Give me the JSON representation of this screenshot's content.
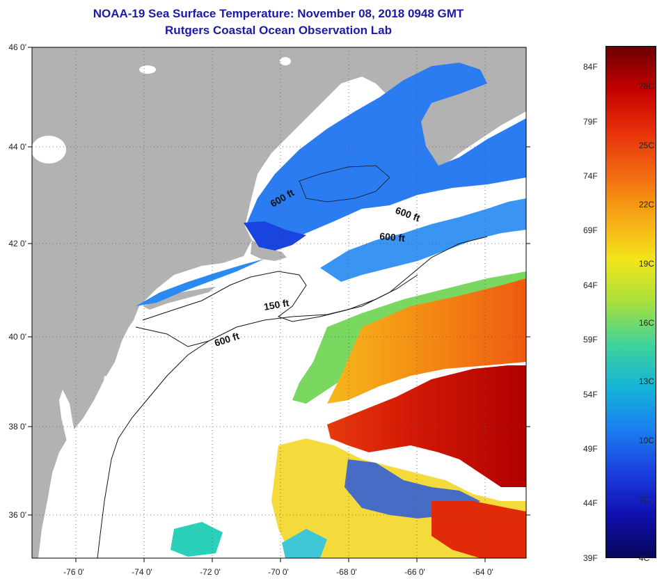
{
  "title": {
    "line1": "NOAA-19 Sea Surface Temperature:  November 08, 2018 0948 GMT",
    "line2": "Rutgers Coastal Ocean Observation Lab"
  },
  "axes": {
    "lat_labels": [
      "46 0'",
      "44 0'",
      "42 0'",
      "40 0'",
      "38 0'",
      "36 0'"
    ],
    "lon_labels": [
      "-76 0'",
      "-74 0'",
      "-72 0'",
      "-70 0'",
      "-68 0'",
      "-66 0'",
      "-64 0'"
    ]
  },
  "contours": {
    "labels": [
      "600 ft",
      "600 ft",
      "600 ft",
      "150 ft",
      "600 ft"
    ]
  },
  "colorbar": {
    "f_labels": [
      "84F",
      "79F",
      "74F",
      "69F",
      "64F",
      "59F",
      "54F",
      "49F",
      "44F",
      "39F"
    ],
    "c_labels": [
      "28C",
      "25C",
      "22C",
      "19C",
      "16C",
      "13C",
      "10C",
      "7C",
      "4C"
    ],
    "colors": [
      "#6b0000",
      "#c40000",
      "#e8300a",
      "#f26a10",
      "#f7a815",
      "#f3e51a",
      "#a8e03c",
      "#3fd39a",
      "#14b4d8",
      "#1a7ff0",
      "#1b3fe0",
      "#1010b0",
      "#06065a"
    ]
  },
  "colors": {
    "land": "#b2b2b2",
    "cloud": "#ffffff",
    "title": "#1a1aa6"
  }
}
